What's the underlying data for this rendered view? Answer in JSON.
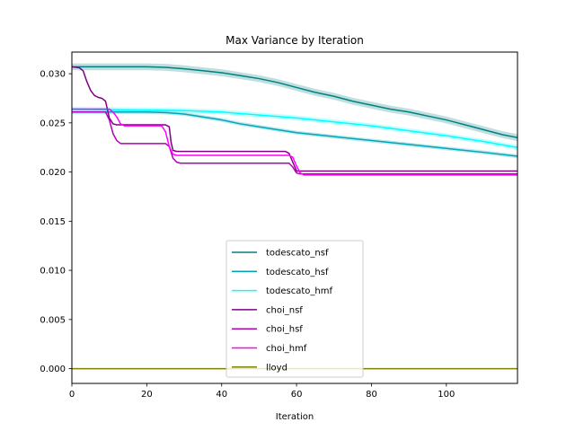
{
  "chart_data": {
    "type": "line",
    "title": "Max Variance by Iteration",
    "xlabel": "Iteration",
    "ylabel": "",
    "xlim": [
      0,
      119
    ],
    "ylim": [
      -0.0015,
      0.0322
    ],
    "xticks": [
      0,
      20,
      40,
      60,
      80,
      100
    ],
    "xtick_labels": [
      "0",
      "20",
      "40",
      "60",
      "80",
      "100"
    ],
    "yticks": [
      0.0,
      0.005,
      0.01,
      0.015,
      0.02,
      0.025,
      0.03
    ],
    "ytick_labels": [
      "0.000",
      "0.005",
      "0.010",
      "0.015",
      "0.020",
      "0.025",
      "0.030"
    ],
    "grid": false,
    "legend_position": "lower-center",
    "series": [
      {
        "name": "todescato_nsf",
        "color": "#008080",
        "band": 0.00035,
        "points": [
          [
            0,
            0.0307
          ],
          [
            10,
            0.0307
          ],
          [
            20,
            0.0307
          ],
          [
            25,
            0.03065
          ],
          [
            30,
            0.0305
          ],
          [
            35,
            0.0303
          ],
          [
            40,
            0.0301
          ],
          [
            45,
            0.0298
          ],
          [
            50,
            0.0295
          ],
          [
            55,
            0.0291
          ],
          [
            60,
            0.0286
          ],
          [
            65,
            0.0281
          ],
          [
            70,
            0.0277
          ],
          [
            75,
            0.0272
          ],
          [
            80,
            0.0268
          ],
          [
            85,
            0.0264
          ],
          [
            90,
            0.0261
          ],
          [
            95,
            0.0257
          ],
          [
            100,
            0.0253
          ],
          [
            105,
            0.0248
          ],
          [
            110,
            0.0243
          ],
          [
            115,
            0.0238
          ],
          [
            119,
            0.0235
          ]
        ]
      },
      {
        "name": "todescato_hsf",
        "color": "#00a6b8",
        "band": 0.0002,
        "points": [
          [
            0,
            0.0261
          ],
          [
            20,
            0.0261
          ],
          [
            25,
            0.02605
          ],
          [
            30,
            0.0259
          ],
          [
            35,
            0.0256
          ],
          [
            40,
            0.0253
          ],
          [
            45,
            0.0249
          ],
          [
            50,
            0.0246
          ],
          [
            55,
            0.0243
          ],
          [
            60,
            0.024
          ],
          [
            70,
            0.0236
          ],
          [
            80,
            0.0232
          ],
          [
            90,
            0.0228
          ],
          [
            100,
            0.0224
          ],
          [
            110,
            0.022
          ],
          [
            119,
            0.0216
          ]
        ]
      },
      {
        "name": "todescato_hmf",
        "color": "#00ffff",
        "band": 0.00025,
        "points": [
          [
            0,
            0.0264
          ],
          [
            20,
            0.0263
          ],
          [
            30,
            0.02625
          ],
          [
            40,
            0.0261
          ],
          [
            50,
            0.0258
          ],
          [
            60,
            0.0255
          ],
          [
            70,
            0.0251
          ],
          [
            80,
            0.0247
          ],
          [
            90,
            0.0242
          ],
          [
            100,
            0.0237
          ],
          [
            110,
            0.0231
          ],
          [
            119,
            0.0225
          ]
        ]
      },
      {
        "name": "choi_nsf",
        "color": "#800080",
        "band": 0,
        "points": [
          [
            0,
            0.0307
          ],
          [
            2,
            0.0306
          ],
          [
            3,
            0.0303
          ],
          [
            4,
            0.0292
          ],
          [
            5,
            0.0283
          ],
          [
            6,
            0.0278
          ],
          [
            7,
            0.0276
          ],
          [
            8,
            0.0275
          ],
          [
            9,
            0.0272
          ],
          [
            10,
            0.0255
          ],
          [
            11,
            0.0249
          ],
          [
            12,
            0.0248
          ],
          [
            25,
            0.0248
          ],
          [
            26,
            0.0246
          ],
          [
            26.5,
            0.023
          ],
          [
            27,
            0.0222
          ],
          [
            28,
            0.0221
          ],
          [
            57,
            0.0221
          ],
          [
            58,
            0.0219
          ],
          [
            59,
            0.021
          ],
          [
            60,
            0.0201
          ],
          [
            119,
            0.0201
          ]
        ]
      },
      {
        "name": "choi_hsf",
        "color": "#b000b8",
        "band": 0,
        "points": [
          [
            0,
            0.0261
          ],
          [
            9,
            0.0261
          ],
          [
            10,
            0.0253
          ],
          [
            11,
            0.0239
          ],
          [
            12,
            0.0232
          ],
          [
            13,
            0.0229
          ],
          [
            25,
            0.0229
          ],
          [
            26,
            0.0226
          ],
          [
            27,
            0.0214
          ],
          [
            28,
            0.021
          ],
          [
            29,
            0.0209
          ],
          [
            58,
            0.0209
          ],
          [
            59,
            0.0205
          ],
          [
            60,
            0.0199
          ],
          [
            61,
            0.0198
          ],
          [
            119,
            0.0198
          ]
        ]
      },
      {
        "name": "choi_hmf",
        "color": "#ff00ff",
        "band": 0,
        "points": [
          [
            0,
            0.0264
          ],
          [
            10,
            0.0264
          ],
          [
            11,
            0.0261
          ],
          [
            12,
            0.0256
          ],
          [
            13,
            0.0249
          ],
          [
            14,
            0.0247
          ],
          [
            24,
            0.0247
          ],
          [
            25,
            0.0241
          ],
          [
            26,
            0.0226
          ],
          [
            27,
            0.0218
          ],
          [
            28,
            0.0217
          ],
          [
            58,
            0.0217
          ],
          [
            59,
            0.0215
          ],
          [
            60,
            0.0206
          ],
          [
            61,
            0.0199
          ],
          [
            62,
            0.0197
          ],
          [
            119,
            0.0197
          ]
        ]
      },
      {
        "name": "lloyd",
        "color": "#808000",
        "band": 0,
        "points": [
          [
            0,
            0.0
          ],
          [
            119,
            0.0
          ]
        ]
      }
    ]
  }
}
